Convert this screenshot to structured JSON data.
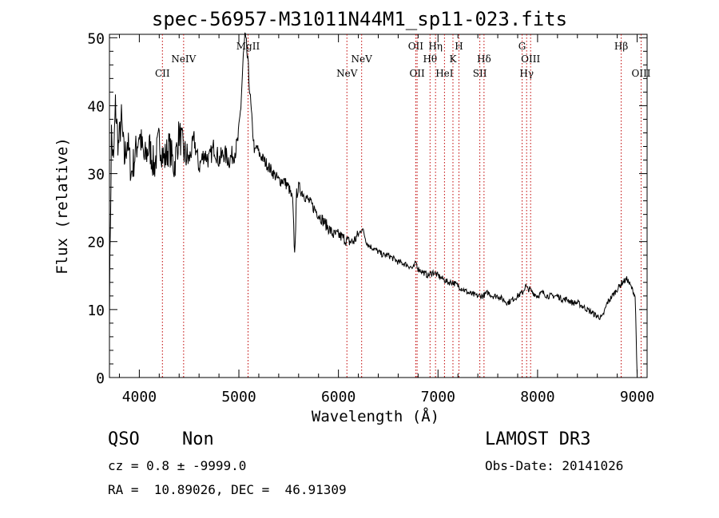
{
  "chart_data": {
    "type": "line",
    "title": "spec-56957-M31011N44M1_sp11-023.fits",
    "xlabel": "Wavelength (Å)",
    "ylabel": "Flux (relative)",
    "xlim": [
      3700,
      9100
    ],
    "ylim": [
      0,
      50.5
    ],
    "x_ticks": [
      4000,
      5000,
      6000,
      7000,
      8000,
      9000
    ],
    "y_ticks": [
      0,
      10,
      20,
      30,
      40,
      50
    ],
    "x_minor_step": 200,
    "y_minor_step": 2,
    "series": [
      {
        "name": "spectrum",
        "x": [
          3700,
          3720,
          3740,
          3760,
          3790,
          3820,
          3850,
          3880,
          3920,
          3960,
          4000,
          4050,
          4100,
          4150,
          4200,
          4250,
          4300,
          4350,
          4400,
          4450,
          4500,
          4550,
          4600,
          4650,
          4700,
          4750,
          4800,
          4850,
          4900,
          4950,
          4980,
          5000,
          5020,
          5040,
          5060,
          5080,
          5100,
          5120,
          5140,
          5160,
          5180,
          5200,
          5250,
          5300,
          5350,
          5400,
          5450,
          5500,
          5540,
          5560,
          5580,
          5600,
          5650,
          5700,
          5750,
          5800,
          5850,
          5900,
          5950,
          6000,
          6050,
          6100,
          6150,
          6200,
          6240,
          6280,
          6300,
          6350,
          6400,
          6450,
          6500,
          6550,
          6600,
          6650,
          6700,
          6750,
          6780,
          6800,
          6850,
          6900,
          6950,
          7000,
          7050,
          7100,
          7150,
          7200,
          7250,
          7300,
          7350,
          7400,
          7450,
          7500,
          7550,
          7600,
          7650,
          7700,
          7750,
          7800,
          7850,
          7880,
          7900,
          7920,
          7950,
          8000,
          8050,
          8100,
          8150,
          8200,
          8250,
          8300,
          8350,
          8400,
          8450,
          8500,
          8550,
          8600,
          8650,
          8700,
          8750,
          8800,
          8850,
          8900,
          8950,
          8980,
          9000
        ],
        "values": [
          10,
          36,
          31,
          40,
          34,
          38,
          32,
          35,
          30,
          33,
          36,
          32,
          34,
          31,
          35,
          32,
          34,
          31,
          36,
          33,
          32,
          35,
          31,
          33,
          32,
          34,
          32,
          33,
          32,
          33,
          34,
          36,
          40,
          46,
          50,
          48,
          44,
          40,
          36,
          33,
          34,
          33,
          32,
          31,
          30,
          29,
          29,
          28,
          26,
          18,
          27,
          28,
          27,
          26,
          25,
          24,
          23,
          22,
          21,
          21,
          20.5,
          20,
          20,
          21,
          22,
          20,
          19.5,
          19,
          18.5,
          18,
          18,
          17.5,
          17,
          16.8,
          16.5,
          16,
          17,
          16,
          15.5,
          15,
          15.5,
          15,
          14.5,
          14,
          14,
          13.5,
          13,
          12.5,
          12.2,
          12,
          12,
          12.5,
          12,
          12,
          11.5,
          11,
          11.5,
          12,
          12.5,
          13.5,
          13,
          13,
          12.5,
          12,
          12.5,
          12,
          12,
          12,
          11.5,
          11.5,
          11,
          11,
          10.5,
          10,
          9.5,
          9,
          8.8,
          11,
          12,
          13,
          14,
          14.5,
          13,
          12,
          0.5
        ]
      }
    ],
    "line_markers": [
      {
        "label": "CII",
        "x": 4232,
        "row": 2
      },
      {
        "label": "NeIV",
        "x": 4445,
        "row": 1
      },
      {
        "label": "MgII",
        "x": 5092,
        "row": 0
      },
      {
        "label": "NeV",
        "x": 6085,
        "row": 2
      },
      {
        "label": "NeV",
        "x": 6233,
        "row": 1
      },
      {
        "label": "OII",
        "x": 6776,
        "row": 0
      },
      {
        "label": "OII",
        "x": 6790,
        "row": 2
      },
      {
        "label": "Hθ",
        "x": 6920,
        "row": 1
      },
      {
        "label": "Hη",
        "x": 6975,
        "row": 0
      },
      {
        "label": "HeI",
        "x": 7065,
        "row": 2
      },
      {
        "label": "K",
        "x": 7150,
        "row": 1
      },
      {
        "label": "H",
        "x": 7210,
        "row": 0
      },
      {
        "label": "SII",
        "x": 7420,
        "row": 2
      },
      {
        "label": "Hδ",
        "x": 7462,
        "row": 1
      },
      {
        "label": "G",
        "x": 7845,
        "row": 0
      },
      {
        "label": "Hγ",
        "x": 7890,
        "row": 2
      },
      {
        "label": "OIII",
        "x": 7930,
        "row": 1
      },
      {
        "label": "Hβ",
        "x": 8840,
        "row": 0
      },
      {
        "label": "OIII",
        "x": 9040,
        "row": 2
      }
    ]
  },
  "info": {
    "class": "QSO",
    "subclass": "Non",
    "survey": "LAMOST DR3",
    "cz": "cz = 0.8 ± -9999.0",
    "obs_date": "Obs-Date: 20141026",
    "radec": "RA =  10.89026, DEC =  46.91309"
  }
}
